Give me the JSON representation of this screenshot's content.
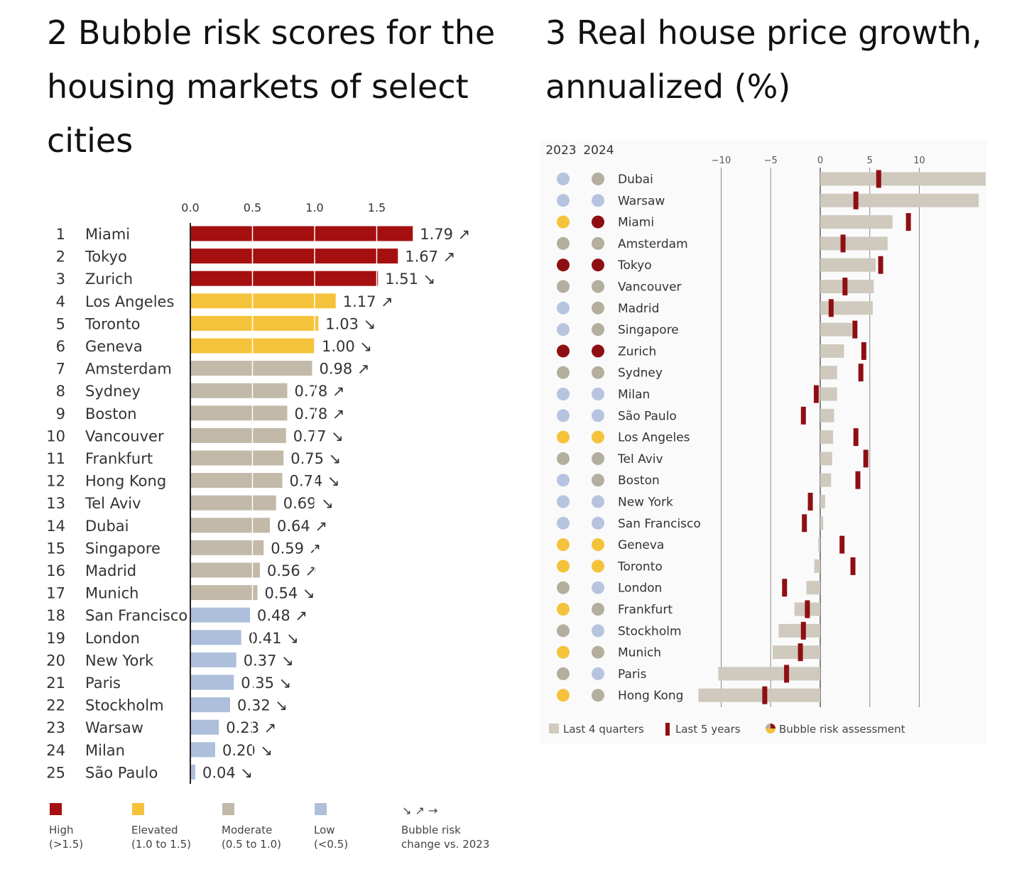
{
  "chart_data": [
    {
      "type": "bar",
      "title": "2 Bubble risk scores for the housing markets of select cities",
      "xlim": [
        0,
        1.9
      ],
      "ticks": [
        "0.0",
        "0.5",
        "1.0",
        "1.5"
      ],
      "categories": [
        "Miami",
        "Tokyo",
        "Zurich",
        "Los Angeles",
        "Toronto",
        "Geneva",
        "Amsterdam",
        "Sydney",
        "Boston",
        "Vancouver",
        "Frankfurt",
        "Hong Kong",
        "Tel Aviv",
        "Dubai",
        "Singapore",
        "Madrid",
        "Munich",
        "San Francisco",
        "London",
        "New York",
        "Paris",
        "Stockholm",
        "Warsaw",
        "Milan",
        "São Paulo"
      ],
      "ranks": [
        "1",
        "2",
        "3",
        "4",
        "5",
        "6",
        "7",
        "8",
        "9",
        "10",
        "11",
        "12",
        "13",
        "14",
        "15",
        "16",
        "17",
        "18",
        "19",
        "20",
        "21",
        "22",
        "23",
        "24",
        "25"
      ],
      "values": [
        1.79,
        1.67,
        1.51,
        1.17,
        1.03,
        1.0,
        0.98,
        0.78,
        0.78,
        0.77,
        0.75,
        0.74,
        0.69,
        0.64,
        0.59,
        0.56,
        0.54,
        0.48,
        0.41,
        0.37,
        0.35,
        0.32,
        0.23,
        0.2,
        0.04
      ],
      "labels": [
        "1.79",
        "1.67",
        "1.51",
        "1.17",
        "1.03",
        "1.00",
        "0.98",
        "0.78",
        "0.78",
        "0.77",
        "0.75",
        "0.74",
        "0.69",
        "0.64",
        "0.59",
        "0.56",
        "0.54",
        "0.48",
        "0.41",
        "0.37",
        "0.35",
        "0.32",
        "0.23",
        "0.20",
        "0.04"
      ],
      "change": [
        "↗",
        "↗",
        "↘",
        "↗",
        "↘",
        "↘",
        "↗",
        "↗",
        "↗",
        "↘",
        "↘",
        "↘",
        "↘",
        "↗",
        "↗",
        "↗",
        "↘",
        "↗",
        "↘",
        "↘",
        "↘",
        "↘",
        "↗",
        "↘",
        "↘"
      ],
      "legend": [
        {
          "name": "High",
          "range": "(>1.5)",
          "color": "#a50f0f"
        },
        {
          "name": "Elevated",
          "range": "(1.0 to 1.5)",
          "color": "#f5c33b"
        },
        {
          "name": "Moderate",
          "range": "(0.5 to 1.0)",
          "color": "#c2b9a9"
        },
        {
          "name": "Low",
          "range": "(<0.5)",
          "color": "#aebfdc"
        }
      ],
      "legend_arrows": {
        "symbols": "↘ ↗ →",
        "line1": "Bubble risk",
        "line2": "change vs. 2023"
      }
    },
    {
      "type": "bar",
      "title": "3 Real house price growth, annualized (%)",
      "xlim": [
        -12.5,
        16.5
      ],
      "ticks": [
        -10,
        -5,
        0,
        5,
        10
      ],
      "tick_labels": [
        "−10",
        "−5",
        "0",
        "5",
        "10"
      ],
      "col_headers": [
        "2023",
        "2024"
      ],
      "categories": [
        "Dubai",
        "Warsaw",
        "Miami",
        "Amsterdam",
        "Tokyo",
        "Vancouver",
        "Madrid",
        "Singapore",
        "Zurich",
        "Sydney",
        "Milan",
        "São Paulo",
        "Los Angeles",
        "Tel Aviv",
        "Boston",
        "New York",
        "San Francisco",
        "Geneva",
        "Toronto",
        "London",
        "Frankfurt",
        "Stockholm",
        "Munich",
        "Paris",
        "Hong Kong"
      ],
      "risk_2023": [
        "low",
        "low",
        "elevated",
        "moderate",
        "high",
        "moderate",
        "low",
        "low",
        "high",
        "moderate",
        "low",
        "low",
        "elevated",
        "moderate",
        "low",
        "low",
        "low",
        "elevated",
        "elevated",
        "moderate",
        "elevated",
        "moderate",
        "elevated",
        "moderate",
        "elevated"
      ],
      "risk_2024": [
        "moderate",
        "low",
        "high",
        "moderate",
        "high",
        "moderate",
        "moderate",
        "moderate",
        "high",
        "moderate",
        "low",
        "low",
        "elevated",
        "moderate",
        "moderate",
        "low",
        "low",
        "elevated",
        "elevated",
        "low",
        "moderate",
        "low",
        "moderate",
        "low",
        "moderate"
      ],
      "series": [
        {
          "name": "Last 4 quarters",
          "values": [
            16.7,
            16.0,
            7.3,
            6.8,
            5.6,
            5.4,
            5.3,
            3.2,
            2.4,
            1.7,
            1.7,
            1.4,
            1.3,
            1.2,
            1.1,
            0.5,
            0.3,
            -0.2,
            -0.6,
            -1.4,
            -2.6,
            -4.2,
            -4.8,
            -10.3,
            -12.3
          ]
        },
        {
          "name": "Last 5 years",
          "values": [
            5.9,
            3.6,
            8.9,
            2.3,
            6.1,
            2.5,
            1.1,
            3.5,
            4.4,
            4.1,
            -0.4,
            -1.7,
            3.6,
            4.6,
            3.8,
            -1.0,
            -1.6,
            2.2,
            3.3,
            -3.6,
            -1.3,
            -1.7,
            -2.0,
            -3.4,
            -5.6
          ]
        }
      ],
      "risk_colors": {
        "high": "#8e0f13",
        "elevated": "#f5c33b",
        "moderate": "#b4ae9e",
        "low": "#b7c4e0"
      },
      "legend": [
        "Last 4 quarters",
        "Last 5 years",
        "Bubble risk assessment"
      ]
    }
  ]
}
